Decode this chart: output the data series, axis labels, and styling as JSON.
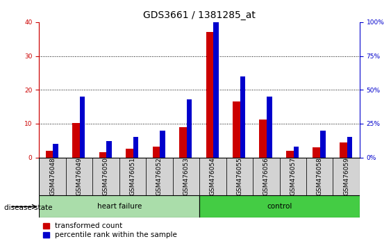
{
  "title": "GDS3661 / 1381285_at",
  "samples": [
    "GSM476048",
    "GSM476049",
    "GSM476050",
    "GSM476051",
    "GSM476052",
    "GSM476053",
    "GSM476054",
    "GSM476055",
    "GSM476056",
    "GSM476057",
    "GSM476058",
    "GSM476059"
  ],
  "red_values": [
    2.0,
    10.2,
    1.5,
    2.5,
    3.2,
    9.0,
    37.0,
    16.5,
    11.2,
    2.0,
    3.0,
    4.5
  ],
  "blue_percentiles": [
    10,
    45,
    12,
    15,
    20,
    43,
    100,
    60,
    45,
    8,
    20,
    15
  ],
  "left_ylim": [
    0,
    40
  ],
  "right_ylim": [
    0,
    100
  ],
  "left_yticks": [
    0,
    10,
    20,
    30,
    40
  ],
  "right_yticks": [
    0,
    25,
    50,
    75,
    100
  ],
  "right_ytick_labels": [
    "0%",
    "25%",
    "50%",
    "75%",
    "100%"
  ],
  "heart_failure_count": 6,
  "control_count": 6,
  "red_color": "#cc0000",
  "blue_color": "#0000cc",
  "hf_color": "#aaddaa",
  "ctrl_color": "#44cc44",
  "tick_bg_color": "#d3d3d3",
  "title_fontsize": 10,
  "tick_fontsize": 6.5,
  "label_fontsize": 7.5,
  "legend_fontsize": 7.5
}
